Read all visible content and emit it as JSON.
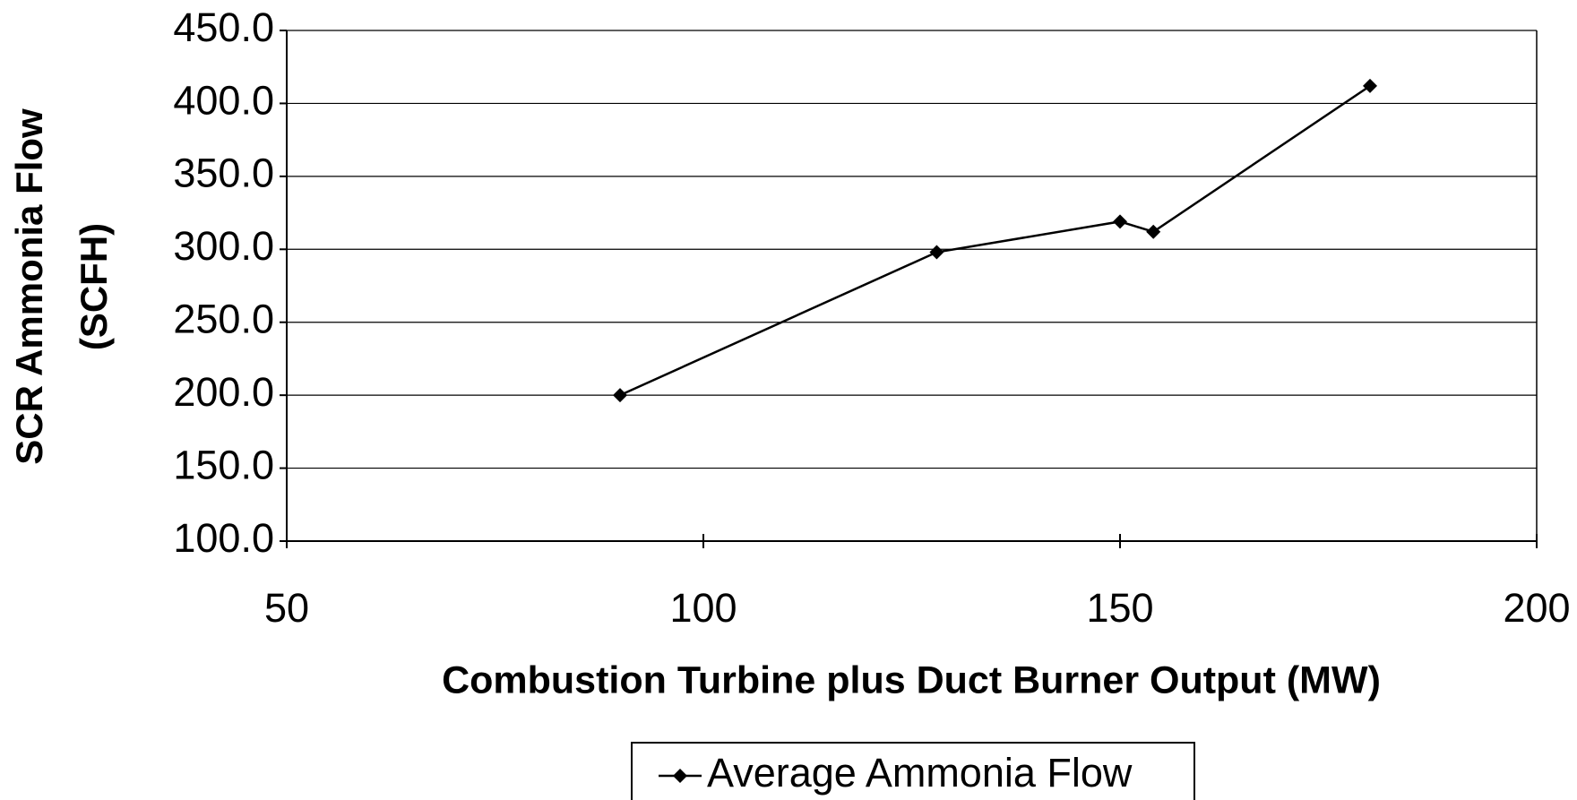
{
  "chart_data": {
    "type": "line",
    "xlabel": "Combustion Turbine plus Duct Burner Output (MW)",
    "ylabel": [
      "SCR Ammonia Flow",
      "(SCFH)"
    ],
    "x": [
      90,
      128,
      150,
      154,
      180
    ],
    "series": [
      {
        "name": "Average Ammonia Flow",
        "color": "#000000",
        "values": [
          200,
          298,
          319,
          312,
          412
        ]
      }
    ],
    "xlim": [
      50,
      200
    ],
    "xticks": [
      50,
      100,
      150,
      200
    ],
    "ylim": [
      100,
      450
    ],
    "yticks": [
      {
        "value": 100,
        "label": "100.0"
      },
      {
        "value": 150,
        "label": "150.0"
      },
      {
        "value": 200,
        "label": "200.0"
      },
      {
        "value": 250,
        "label": "250.0"
      },
      {
        "value": 300,
        "label": "300.0"
      },
      {
        "value": 350,
        "label": "350.0"
      },
      {
        "value": 400,
        "label": "400.0"
      },
      {
        "value": 450,
        "label": "450.0"
      }
    ],
    "grid": true,
    "legend": "bottom"
  }
}
